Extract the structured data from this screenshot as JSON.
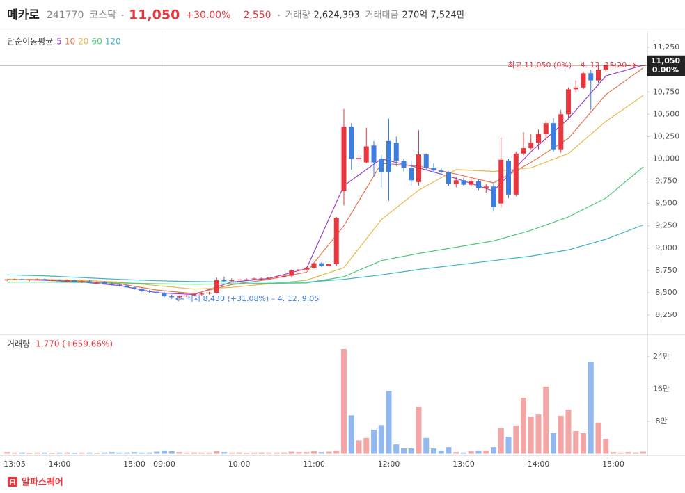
{
  "header": {
    "name": "메카로",
    "code": "241770",
    "market": "코스닥",
    "price": "11,050",
    "change_pct": "+30.00%",
    "change": "2,550",
    "volume_label": "거래량",
    "volume": "2,624,393",
    "amount_label": "거래대금",
    "amount": "270억 7,524만"
  },
  "chart_data": [
    {
      "type": "candlestick",
      "indicator_title": "단순이동평균",
      "up_color": "#e8373e",
      "down_color": "#3d7ee0",
      "categories": [
        null,
        "13:05",
        null,
        null,
        null,
        null,
        null,
        "14:00",
        null,
        null,
        null,
        null,
        null,
        null,
        null,
        null,
        null,
        "15:00",
        null,
        null,
        null,
        "09:00",
        null,
        null,
        null,
        null,
        null,
        null,
        null,
        null,
        null,
        "10:00",
        null,
        null,
        null,
        null,
        null,
        null,
        null,
        null,
        null,
        "11:00",
        null,
        null,
        null,
        null,
        null,
        null,
        null,
        null,
        null,
        "12:00",
        null,
        null,
        null,
        null,
        null,
        null,
        null,
        null,
        null,
        "13:00",
        null,
        null,
        null,
        null,
        null,
        null,
        null,
        null,
        null,
        "14:00",
        null,
        null,
        null,
        null,
        null,
        null,
        null,
        null,
        null,
        "15:00",
        null,
        null,
        null,
        null
      ],
      "open": [
        8640,
        8650,
        8650,
        8640,
        8650,
        8650,
        8640,
        8640,
        8630,
        8640,
        8620,
        8630,
        8610,
        8620,
        8600,
        8590,
        8580,
        8560,
        8540,
        8520,
        8510,
        8500,
        8460,
        8450,
        8460,
        8470,
        8480,
        8490,
        8500,
        8640,
        8630,
        8640,
        8650,
        8650,
        8660,
        8660,
        8670,
        8680,
        8690,
        8750,
        8760,
        8780,
        8830,
        8800,
        8820,
        9640,
        10360,
        10000,
        9960,
        10150,
        10000,
        10200,
        10180,
        9980,
        9900,
        9740,
        10050,
        9900,
        9870,
        9850,
        9720,
        9760,
        9710,
        9750,
        9670,
        9690,
        9500,
        9980,
        9600,
        10060,
        10120,
        10180,
        10280,
        10400,
        10100,
        10500,
        10780,
        10800,
        10960,
        10880,
        11000,
        11050,
        11050,
        11050,
        11050,
        11050
      ],
      "high": [
        8650,
        8660,
        8660,
        8650,
        8660,
        8660,
        8650,
        8650,
        8650,
        8650,
        8640,
        8640,
        8630,
        8630,
        8620,
        8600,
        8590,
        8570,
        8550,
        8530,
        8520,
        8510,
        8480,
        8470,
        8480,
        8490,
        8500,
        8510,
        8670,
        8680,
        8660,
        8660,
        8660,
        8670,
        8670,
        8680,
        8690,
        8700,
        8760,
        8770,
        8790,
        8840,
        8840,
        8830,
        9350,
        10560,
        10400,
        10050,
        10350,
        10200,
        10050,
        10450,
        10250,
        10000,
        9980,
        10320,
        10060,
        9950,
        9900,
        9860,
        9800,
        9790,
        9780,
        9770,
        9720,
        9720,
        10240,
        10000,
        10080,
        10300,
        10280,
        10330,
        10430,
        10460,
        10550,
        10800,
        10880,
        10980,
        11000,
        11050,
        11050,
        11050,
        11050,
        11050,
        11050,
        11050
      ],
      "low": [
        8630,
        8640,
        8640,
        8630,
        8640,
        8640,
        8630,
        8630,
        8620,
        8620,
        8610,
        8610,
        8600,
        8600,
        8580,
        8570,
        8560,
        8530,
        8510,
        8500,
        8490,
        8450,
        8430,
        8440,
        8450,
        8460,
        8470,
        8480,
        8490,
        8620,
        8620,
        8630,
        8640,
        8640,
        8650,
        8650,
        8660,
        8670,
        8680,
        8740,
        8750,
        8770,
        8790,
        8790,
        8800,
        9480,
        9880,
        9960,
        9950,
        9800,
        9680,
        9530,
        9920,
        9860,
        9700,
        9700,
        9880,
        9850,
        9820,
        9700,
        9680,
        9700,
        9690,
        9650,
        9620,
        9410,
        9450,
        9560,
        9580,
        10040,
        10100,
        10100,
        10200,
        10080,
        10070,
        10460,
        10750,
        10780,
        10550,
        10850,
        10980,
        11040,
        11040,
        11040,
        11040,
        11040
      ],
      "close": [
        8650,
        8650,
        8640,
        8650,
        8650,
        8640,
        8640,
        8630,
        8640,
        8620,
        8630,
        8610,
        8620,
        8600,
        8590,
        8580,
        8560,
        8540,
        8520,
        8510,
        8500,
        8460,
        8450,
        8460,
        8470,
        8480,
        8490,
        8500,
        8640,
        8630,
        8640,
        8650,
        8650,
        8660,
        8660,
        8670,
        8680,
        8690,
        8750,
        8760,
        8780,
        8830,
        8800,
        8820,
        9340,
        10360,
        10000,
        10010,
        10140,
        9960,
        9850,
        9850,
        9980,
        9900,
        9760,
        10050,
        9900,
        9870,
        9850,
        9720,
        9760,
        9710,
        9750,
        9670,
        9690,
        9460,
        9990,
        9600,
        10060,
        10120,
        10180,
        10280,
        10400,
        10100,
        10500,
        10780,
        10800,
        10960,
        10880,
        11000,
        11050,
        11050,
        11050,
        11050,
        11050,
        11050
      ],
      "series": [
        {
          "name": "5",
          "color": "#9b3fc8",
          "x": [
            0,
            5,
            10,
            15,
            20,
            25,
            30,
            35,
            40,
            45,
            50,
            55,
            60,
            65,
            70,
            75,
            80,
            85
          ],
          "values": [
            8650,
            8640,
            8620,
            8580,
            8500,
            8480,
            8620,
            8660,
            8770,
            9700,
            10000,
            9900,
            9780,
            9640,
            10080,
            10450,
            10930,
            11050
          ]
        },
        {
          "name": "10",
          "color": "#e8744a",
          "x": [
            0,
            5,
            10,
            15,
            20,
            25,
            30,
            35,
            40,
            45,
            50,
            55,
            60,
            65,
            70,
            75,
            80,
            85
          ],
          "values": [
            8650,
            8650,
            8630,
            8600,
            8530,
            8490,
            8590,
            8650,
            8730,
            9250,
            9950,
            9920,
            9830,
            9730,
            9960,
            10230,
            10720,
            11020
          ]
        },
        {
          "name": "20",
          "color": "#e8b84a",
          "x": [
            0,
            5,
            10,
            15,
            20,
            25,
            30,
            35,
            40,
            45,
            50,
            55,
            60,
            65,
            70,
            75,
            80,
            85
          ],
          "values": [
            8650,
            8650,
            8640,
            8620,
            8580,
            8540,
            8560,
            8600,
            8640,
            8780,
            9320,
            9650,
            9880,
            9860,
            9900,
            10060,
            10420,
            10710
          ]
        },
        {
          "name": "60",
          "color": "#4cc97a",
          "x": [
            0,
            5,
            10,
            15,
            20,
            25,
            30,
            35,
            40,
            45,
            50,
            55,
            60,
            65,
            70,
            75,
            80,
            85
          ],
          "values": [
            8620,
            8620,
            8615,
            8610,
            8600,
            8595,
            8600,
            8605,
            8610,
            8680,
            8860,
            8940,
            9010,
            9080,
            9200,
            9350,
            9560,
            9910
          ]
        },
        {
          "name": "120",
          "color": "#3bb4c4",
          "x": [
            0,
            5,
            10,
            15,
            20,
            25,
            30,
            35,
            40,
            45,
            50,
            55,
            60,
            65,
            70,
            75,
            80,
            85
          ],
          "values": [
            8700,
            8690,
            8670,
            8650,
            8635,
            8625,
            8620,
            8620,
            8620,
            8650,
            8700,
            8760,
            8810,
            8860,
            8910,
            8980,
            9100,
            9260
          ]
        }
      ],
      "ylim": [
        8040,
        11430
      ],
      "yticks": [
        {
          "value": 8250,
          "label": "8,250"
        },
        {
          "value": 8500,
          "label": "8,500"
        },
        {
          "value": 8750,
          "label": "8,750"
        },
        {
          "value": 9000,
          "label": "9,000"
        },
        {
          "value": 9250,
          "label": "9,250"
        },
        {
          "value": 9500,
          "label": "9,500"
        },
        {
          "value": 9750,
          "label": "9,750"
        },
        {
          "value": 10000,
          "label": "10,000"
        },
        {
          "value": 10250,
          "label": "10,250"
        },
        {
          "value": 10500,
          "label": "10,500"
        },
        {
          "value": 10750,
          "label": "10,750"
        },
        {
          "value": 11000,
          "label": "11,000"
        },
        {
          "value": 11250,
          "label": "11,250"
        }
      ],
      "last_price": {
        "value": 11050,
        "label": "11,050"
      },
      "last_change": "0.00%",
      "annotations": [
        {
          "text": "최고 11,050 (0%) – 4. 12. 15:20",
          "x": 84,
          "y": 11050,
          "color": "#e8373e",
          "side": "left"
        },
        {
          "text": "최저 8,430 (+31.08%) – 4. 12. 9:05",
          "x": 22,
          "y": 8430,
          "color": "#3d7ee0",
          "side": "right"
        }
      ]
    },
    {
      "type": "bar",
      "title": "거래량",
      "subtitle": "1,770 (+659.66%)",
      "up_color": "#f4a6a6",
      "down_color": "#93b8f0",
      "values": [
        4000,
        3000,
        3000,
        2000,
        3000,
        3000,
        2000,
        3000,
        3000,
        2000,
        3000,
        3000,
        2000,
        3000,
        4000,
        3000,
        3000,
        4000,
        3000,
        3000,
        5000,
        8000,
        6000,
        4000,
        3000,
        3000,
        3000,
        3000,
        6000,
        4000,
        3000,
        3000,
        2000,
        3000,
        3000,
        3000,
        3000,
        3000,
        5000,
        4000,
        4000,
        6000,
        4000,
        5000,
        8000,
        259000,
        95000,
        33000,
        39000,
        59000,
        71000,
        155000,
        23000,
        13000,
        13000,
        116000,
        39000,
        13000,
        8000,
        16000,
        4000,
        3000,
        6000,
        8000,
        8000,
        16000,
        63000,
        42000,
        70000,
        138000,
        92000,
        97000,
        166000,
        51000,
        94000,
        109000,
        56000,
        51000,
        228000,
        77000,
        37000,
        4000,
        3000,
        4000,
        3000,
        5000
      ],
      "ylim": [
        0,
        290000
      ],
      "yticks": [
        {
          "value": 80000,
          "label": "8만"
        },
        {
          "value": 160000,
          "label": "16만"
        },
        {
          "value": 240000,
          "label": "24만"
        }
      ]
    }
  ],
  "footer": {
    "brand": "알파스퀘어"
  }
}
